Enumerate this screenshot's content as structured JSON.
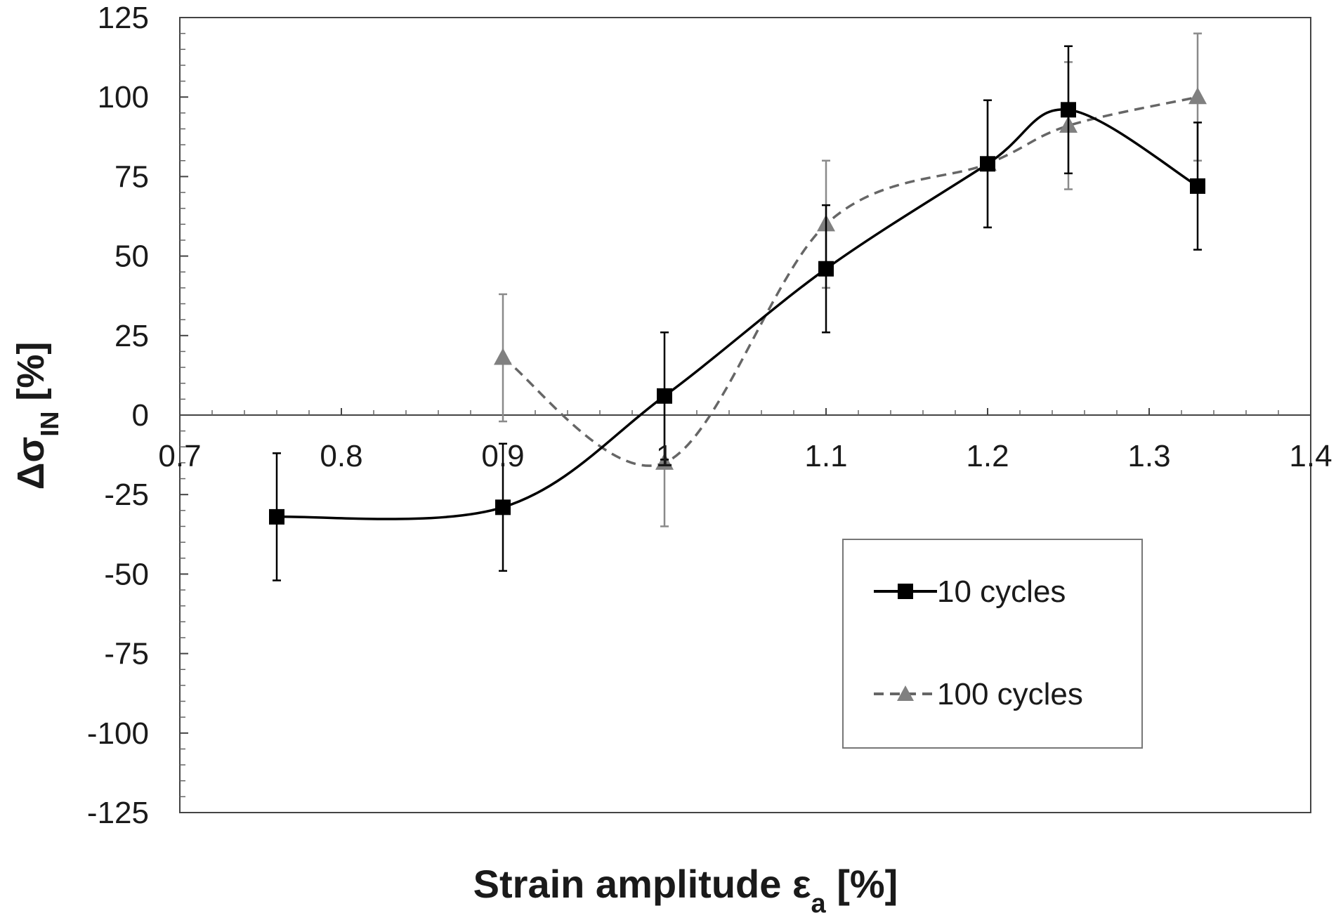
{
  "chart_data": {
    "type": "line",
    "xlabel_main": "Strain amplitude ε",
    "xlabel_sub": "a",
    "xlabel_unit": " [%]",
    "ylabel_main": "Δσ",
    "ylabel_sub": "IN",
    "ylabel_unit": " [%]",
    "xlim": [
      0.7,
      1.4
    ],
    "ylim": [
      -125,
      125
    ],
    "xticks": [
      "0.7",
      "0.8",
      "0.9",
      "1",
      "1.1",
      "1.2",
      "1.3",
      "1.4"
    ],
    "yticks": [
      "125",
      "100",
      "75",
      "50",
      "25",
      "0",
      "-25",
      "-50",
      "-75",
      "-100",
      "-125"
    ],
    "grid": false,
    "legend_position": "lower-right",
    "series": [
      {
        "name": "10 cycles",
        "marker": "square",
        "line": "solid",
        "color": "#000000",
        "x": [
          0.76,
          0.9,
          1.0,
          1.1,
          1.2,
          1.25,
          1.33
        ],
        "y": [
          -32,
          -29,
          6,
          46,
          79,
          96,
          72
        ],
        "err": [
          20,
          20,
          20,
          20,
          20,
          20,
          20
        ]
      },
      {
        "name": "100 cycles",
        "marker": "triangle",
        "line": "dashed",
        "color": "#808080",
        "x": [
          0.9,
          1.0,
          1.1,
          1.2,
          1.25,
          1.33
        ],
        "y": [
          18,
          -15,
          60,
          79,
          91,
          100
        ],
        "err": [
          20,
          20,
          20,
          20,
          20,
          20
        ]
      }
    ]
  }
}
